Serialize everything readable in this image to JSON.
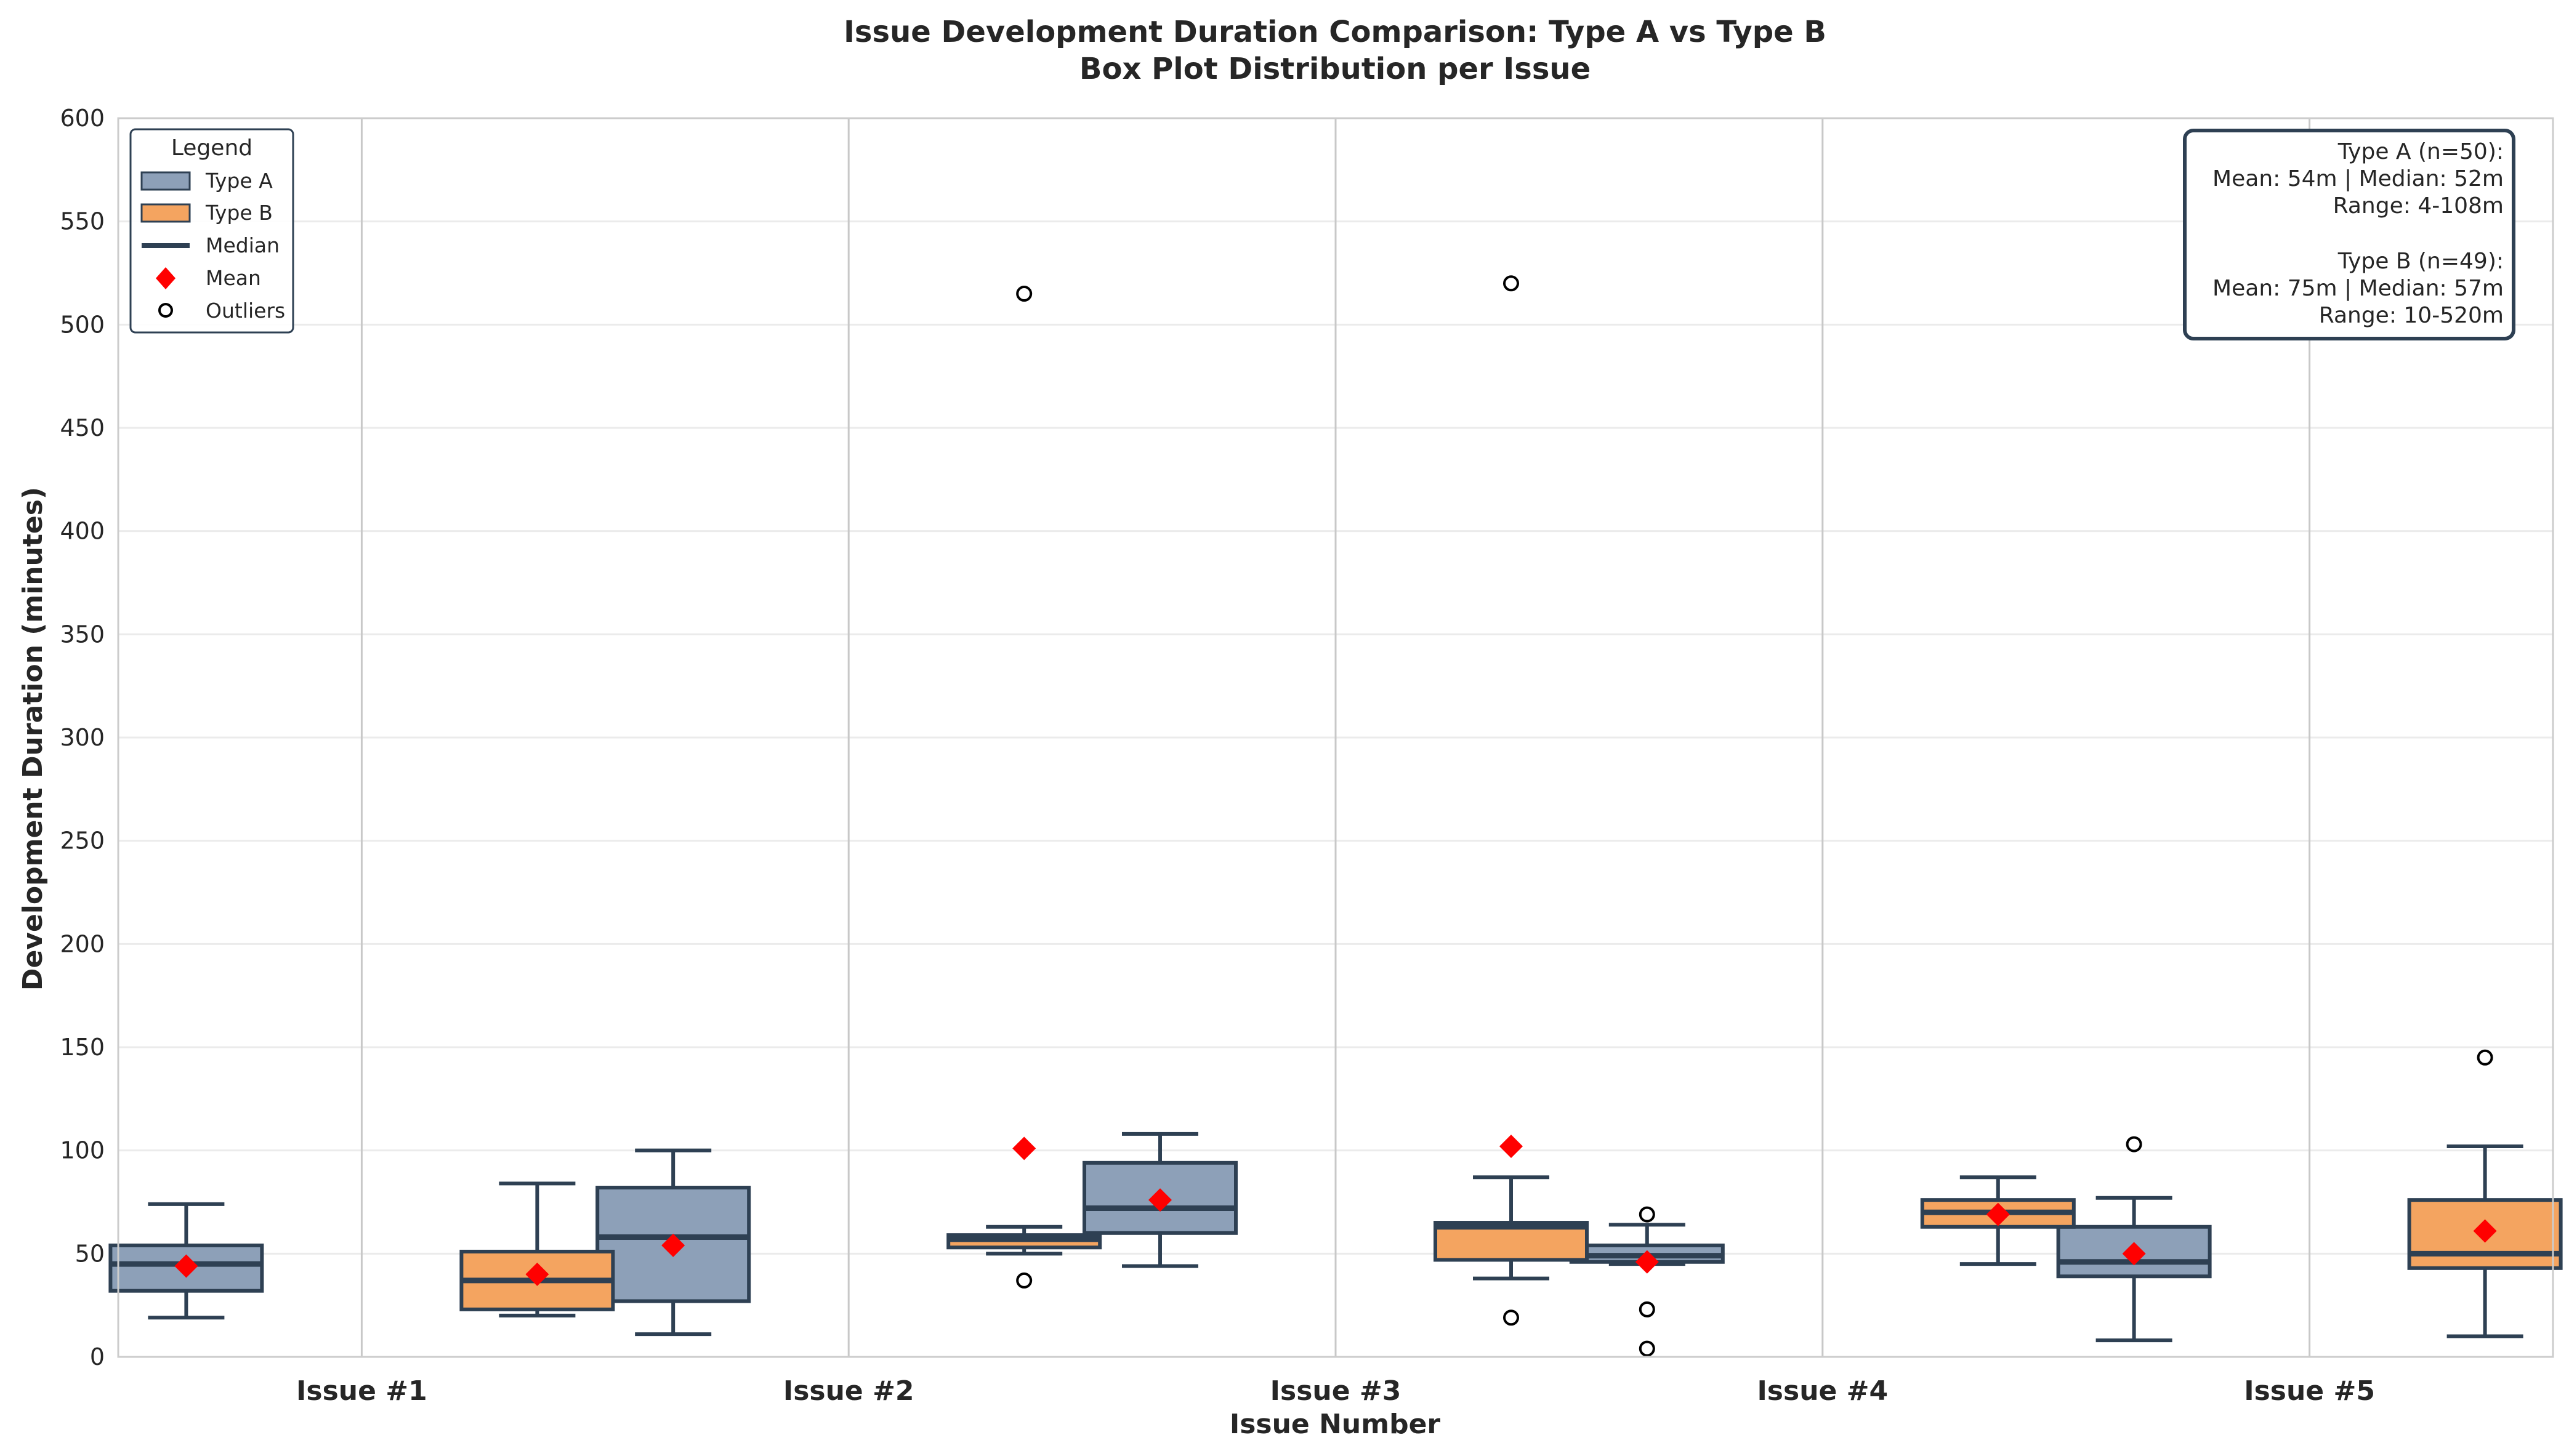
{
  "chart_data": {
    "type": "box",
    "title_line1": "Issue Development Duration Comparison: Type A vs Type B",
    "title_line2": "Box Plot Distribution per Issue",
    "xlabel": "Issue Number",
    "ylabel": "Development Duration (minutes)",
    "ylim": [
      0,
      600
    ],
    "yticks": [
      0,
      50,
      100,
      150,
      200,
      250,
      300,
      350,
      400,
      450,
      500,
      550,
      600
    ],
    "categories": [
      "Issue #1",
      "Issue #2",
      "Issue #3",
      "Issue #4",
      "Issue #5"
    ],
    "grid": true,
    "legend_position": "top-left",
    "legend": {
      "title": "Legend",
      "items": [
        "Type A",
        "Type B",
        "Median",
        "Mean",
        "Outliers"
      ]
    },
    "colors": {
      "type_a": "#8da0b8",
      "type_b": "#f4a460",
      "edge": "#2e4053",
      "mean": "#ff0000",
      "grid": "#ebebeb",
      "divider": "#c8c8c8"
    },
    "series": [
      {
        "name": "Type A",
        "boxes": [
          {
            "min": 19,
            "q1": 32,
            "median": 45,
            "q3": 54,
            "max": 74,
            "mean": 44,
            "outliers": []
          },
          {
            "min": 11,
            "q1": 27,
            "median": 58,
            "q3": 82,
            "max": 100,
            "mean": 54,
            "outliers": []
          },
          {
            "min": 44,
            "q1": 60,
            "median": 72,
            "q3": 94,
            "max": 108,
            "mean": 76,
            "outliers": []
          },
          {
            "min": 45,
            "q1": 46,
            "median": 49,
            "q3": 54,
            "max": 64,
            "mean": 46,
            "outliers": [
              69,
              23,
              4
            ]
          },
          {
            "min": 8,
            "q1": 39,
            "median": 46,
            "q3": 63,
            "max": 77,
            "mean": 50,
            "outliers": [
              103
            ]
          }
        ]
      },
      {
        "name": "Type B",
        "boxes": [
          {
            "min": 20,
            "q1": 23,
            "median": 37,
            "q3": 51,
            "max": 84,
            "mean": 40,
            "outliers": []
          },
          {
            "min": 50,
            "q1": 53,
            "median": 57,
            "q3": 59,
            "max": 63,
            "mean": 101,
            "outliers": [
              515,
              37
            ]
          },
          {
            "min": 38,
            "q1": 47,
            "median": 63,
            "q3": 65,
            "max": 87,
            "mean": 102,
            "outliers": [
              520,
              19
            ]
          },
          {
            "min": 45,
            "q1": 63,
            "median": 70,
            "q3": 76,
            "max": 87,
            "mean": 69,
            "outliers": []
          },
          {
            "min": 10,
            "q1": 43,
            "median": 50,
            "q3": 76,
            "max": 102,
            "mean": 61,
            "outliers": [
              145
            ]
          }
        ]
      }
    ],
    "stats_box": {
      "position": "top-right",
      "lines": [
        "Type A (n=50):",
        "Mean: 54m | Median: 52m",
        "Range: 4-108m",
        "",
        "Type B (n=49):",
        "Mean: 75m | Median: 57m",
        "Range: 10-520m"
      ]
    }
  }
}
